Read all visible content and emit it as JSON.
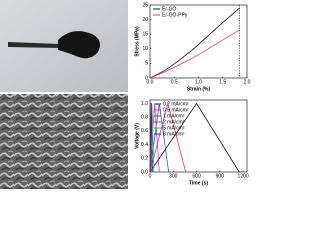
{
  "chart_data": [
    {
      "type": "line",
      "x_label": "Strain (%)",
      "y_label": "Stress (MPa)",
      "legend": "top-left",
      "xlim": [
        0,
        2
      ],
      "ylim": [
        0,
        25
      ],
      "xticks": [
        {
          "value": 0,
          "label": "0.0"
        },
        {
          "value": 0.5,
          "label": "0.5"
        },
        {
          "value": 1,
          "label": "1.0"
        },
        {
          "value": 1.5,
          "label": "1.5"
        },
        {
          "value": 2,
          "label": "2.0"
        }
      ],
      "yticks": [
        0,
        5,
        10,
        15,
        20,
        25
      ],
      "series": [
        {
          "name": "Er-GO",
          "color": "#111111",
          "x": [
            0,
            0.3,
            0.6,
            0.9,
            1.2,
            1.5,
            1.85
          ],
          "values": [
            0,
            2.5,
            6,
            10,
            14.5,
            19,
            24
          ]
        },
        {
          "name": "Er-GO-PPy",
          "color": "#e8386e",
          "x": [
            0,
            0.3,
            0.6,
            0.9,
            1.2,
            1.5,
            1.85
          ],
          "values": [
            0,
            2,
            4.5,
            7,
            10,
            13,
            16.5
          ]
        }
      ]
    },
    {
      "type": "line",
      "x_label": "Time (s)",
      "y_label": "Voltage (V)",
      "legend": "top-right",
      "xlim": [
        0,
        1250
      ],
      "ylim": [
        0,
        1.05
      ],
      "xticks": [
        0,
        300,
        600,
        900,
        1200
      ],
      "yticks": [
        {
          "value": 0,
          "label": "0.0"
        },
        {
          "value": 0.2,
          "label": "0.2"
        },
        {
          "value": 0.4,
          "label": "0.4"
        },
        {
          "value": 0.6,
          "label": "0.6"
        },
        {
          "value": 0.8,
          "label": "0.8"
        },
        {
          "value": 1,
          "label": "1.0"
        }
      ],
      "series": [
        {
          "name": "0.2 mA/cm²",
          "color": "#111111",
          "x": [
            0,
            600,
            1150
          ],
          "values": [
            0,
            1,
            0
          ]
        },
        {
          "name": "0.5 mA/cm²",
          "color": "#e8386e",
          "x": [
            0,
            230,
            460
          ],
          "values": [
            0,
            1,
            0
          ]
        },
        {
          "name": "1 mA/cm²",
          "color": "#3355dd",
          "x": [
            0,
            120,
            240
          ],
          "values": [
            0,
            1,
            0
          ]
        },
        {
          "name": "2 mA/cm²",
          "color": "#cc33cc",
          "x": [
            0,
            60,
            120
          ],
          "values": [
            0,
            1,
            0
          ]
        },
        {
          "name": "5 mA/cm²",
          "color": "#33bb33",
          "x": [
            0,
            25,
            50
          ],
          "values": [
            0,
            1,
            0
          ]
        },
        {
          "name": "8 mA/cm²",
          "color": "#222288",
          "x": [
            0,
            15,
            30
          ],
          "values": [
            0,
            1,
            0
          ]
        }
      ]
    }
  ]
}
